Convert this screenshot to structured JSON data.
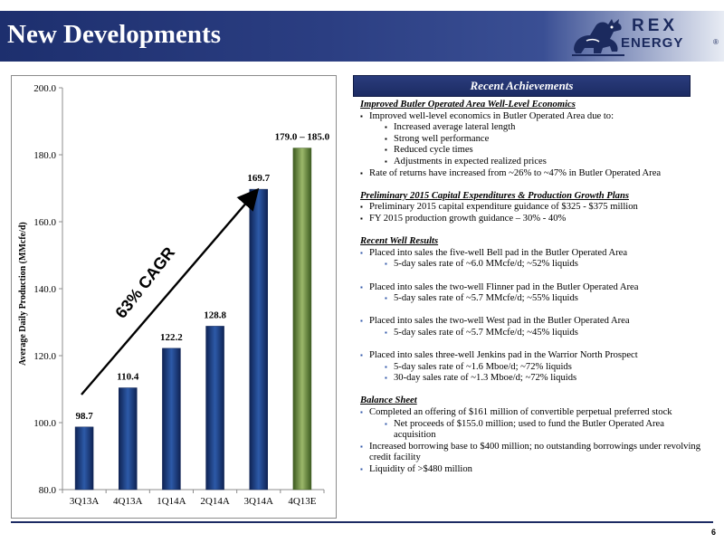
{
  "header": {
    "title": "New Developments",
    "logo": {
      "line1": "REX",
      "line2": "ENERGY",
      "reg": "®",
      "icon": "dinosaur-logo-icon"
    }
  },
  "chart_data": {
    "type": "bar",
    "categories": [
      "3Q13A",
      "4Q13A",
      "1Q14A",
      "2Q14A",
      "3Q14A",
      "4Q13E"
    ],
    "values": [
      98.7,
      110.4,
      122.2,
      128.8,
      169.7,
      182.0
    ],
    "data_labels": [
      "98.7",
      "110.4",
      "122.2",
      "128.8",
      "169.7",
      "179.0 – 185.0"
    ],
    "ylabel": "Average Daily Production (MMcfe/d)",
    "xlabel": "",
    "ylim": [
      80.0,
      200.0
    ],
    "yticks": [
      "80.0",
      "100.0",
      "120.0",
      "140.0",
      "160.0",
      "180.0",
      "200.0"
    ],
    "yticks_values": [
      80,
      100,
      120,
      140,
      160,
      180,
      200
    ],
    "annotation": "63% CAGR",
    "colors": {
      "actual": "#1f3b7a",
      "estimate": "#5f7a34"
    },
    "grid": false
  },
  "recent_achievements": {
    "header": "Recent Achievements",
    "sections": [
      {
        "title": "Improved Butler Operated Area Well-Level Economics",
        "items": [
          {
            "level": 1,
            "text": "Improved well-level economics in Butler Operated Area due to:"
          },
          {
            "level": 2,
            "text": "Increased average lateral length"
          },
          {
            "level": 2,
            "text": "Strong well performance"
          },
          {
            "level": 2,
            "text": "Reduced cycle times"
          },
          {
            "level": 2,
            "text": "Adjustments in expected realized prices"
          },
          {
            "level": 1,
            "text": "Rate of returns have increased from ~26% to ~47% in Butler Operated Area"
          }
        ]
      },
      {
        "title": "Preliminary 2015 Capital Expenditures & Production Growth Plans",
        "items": [
          {
            "level": 1,
            "text": "Preliminary 2015 capital expenditure guidance of $325 - $375 million"
          },
          {
            "level": 1,
            "text": "FY 2015 production growth guidance – 30% - 40%"
          }
        ]
      },
      {
        "title": "Recent Well Results",
        "items": [
          {
            "level": 1,
            "text": "Placed into sales the five-well Bell pad in the Butler Operated Area"
          },
          {
            "level": 2,
            "text": "5-day sales rate of ~6.0 MMcfe/d; ~52% liquids"
          },
          {
            "level": 0,
            "text": ""
          },
          {
            "level": 1,
            "text": "Placed into sales the two-well Flinner pad in the Butler Operated Area"
          },
          {
            "level": 2,
            "text": "5-day sales rate of ~5.7 MMcfe/d; ~55% liquids"
          },
          {
            "level": 0,
            "text": ""
          },
          {
            "level": 1,
            "text": "Placed into sales the two-well West pad in the Butler Operated Area"
          },
          {
            "level": 2,
            "text": "5-day sales rate of ~5.7 MMcfe/d; ~45% liquids"
          },
          {
            "level": 0,
            "text": ""
          },
          {
            "level": 1,
            "text": "Placed into sales three-well Jenkins pad in the Warrior North Prospect"
          },
          {
            "level": 2,
            "text": "5-day sales rate of ~1.6 Mboe/d; ~72% liquids"
          },
          {
            "level": 2,
            "text": "30-day sales rate of ~1.3 Mboe/d; ~72% liquids"
          }
        ]
      },
      {
        "title": "Balance Sheet",
        "items": [
          {
            "level": 1,
            "text": "Completed an offering of $161 million of convertible perpetual preferred stock"
          },
          {
            "level": 2,
            "text": "Net proceeds of $155.0 million; used to fund the Butler Operated Area acquisition"
          },
          {
            "level": 1,
            "text": "Increased borrowing base to $400 million; no outstanding borrowings under revolving credit facility"
          },
          {
            "level": 1,
            "text": "Liquidity of >$480 million"
          }
        ]
      }
    ]
  },
  "page_number": "6"
}
